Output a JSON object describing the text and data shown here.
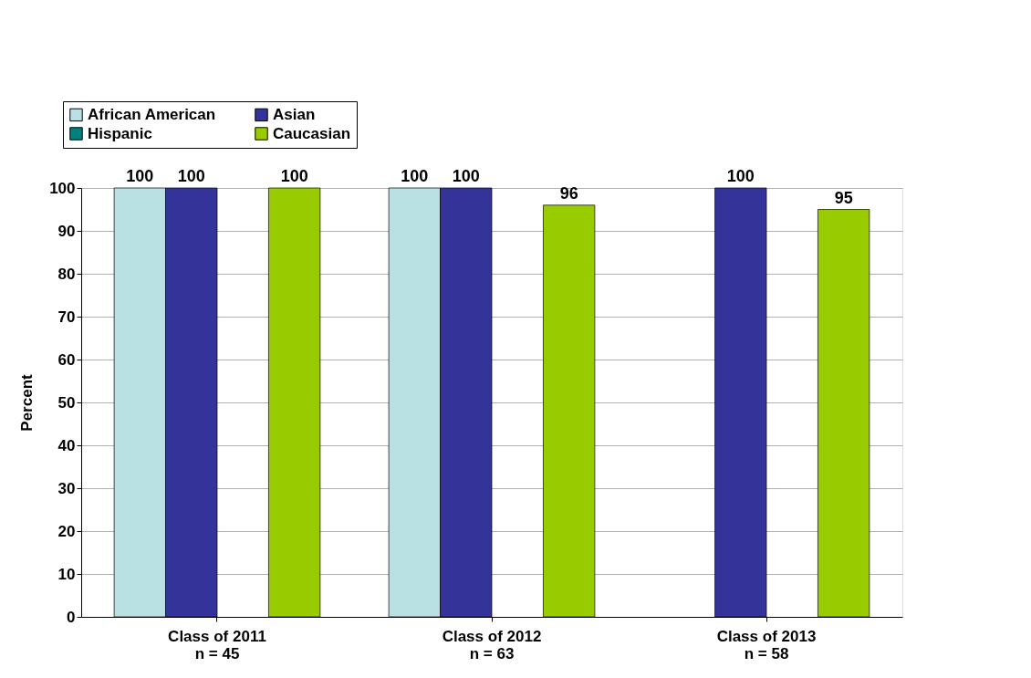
{
  "chart_data": {
    "type": "bar",
    "ylabel": "Percent",
    "categories": [
      "Class of 2011\nn = 45",
      "Class of 2012\nn = 63",
      "Class of 2013\nn = 58"
    ],
    "series": [
      {
        "name": "African American",
        "color": "#b9e0e3",
        "values": [
          100,
          100,
          null
        ]
      },
      {
        "name": "Asian",
        "color": "#333399",
        "values": [
          100,
          100,
          100
        ]
      },
      {
        "name": "Hispanic",
        "color": "#008080",
        "values": [
          null,
          null,
          null
        ]
      },
      {
        "name": "Caucasian",
        "color": "#99cc00",
        "values": [
          100,
          96,
          95
        ]
      }
    ],
    "ylim": [
      0,
      100
    ],
    "yticks": [
      0,
      10,
      20,
      30,
      40,
      50,
      60,
      70,
      80,
      90,
      100
    ],
    "grid": "y",
    "legend": "top left",
    "data_labels": true
  }
}
